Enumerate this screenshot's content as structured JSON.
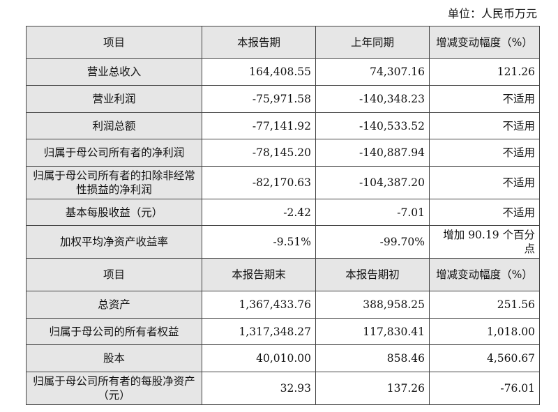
{
  "unit_label": "单位：人民币万元",
  "header1": [
    "项目",
    "本报告期",
    "上年同期",
    "增减变动幅度（%）"
  ],
  "rows1": [
    {
      "item": "营业总收入",
      "current": "164,408.55",
      "prior": "74,307.16",
      "change": "121.26"
    },
    {
      "item": "营业利润",
      "current": "-75,971.58",
      "prior": "-140,348.23",
      "change": "不适用"
    },
    {
      "item": "利润总额",
      "current": "-77,141.92",
      "prior": "-140,533.52",
      "change": "不适用"
    },
    {
      "item": "归属于母公司所有者的净利润",
      "current": "-78,145.20",
      "prior": "-140,887.94",
      "change": "不适用"
    },
    {
      "item": "归属于母公司所有者的扣除非经常性损益的净利润",
      "current": "-82,170.63",
      "prior": "-104,387.20",
      "change": "不适用"
    },
    {
      "item": "基本每股收益（元）",
      "current": "-2.42",
      "prior": "-7.01",
      "change": "不适用"
    },
    {
      "item": "加权平均净资产收益率",
      "current": "-9.51%",
      "prior": "-99.70%",
      "change": "增加 90.19 个百分点"
    }
  ],
  "header2": [
    "项目",
    "本报告期末",
    "本报告期初",
    "增减变动幅度（%）"
  ],
  "rows2": [
    {
      "item": "总资产",
      "current": "1,367,433.76",
      "prior": "388,958.25",
      "change": "251.56"
    },
    {
      "item": "归属于母公司的所有者权益",
      "current": "1,317,348.27",
      "prior": "117,830.41",
      "change": "1,018.00"
    },
    {
      "item": "股本",
      "current": "40,010.00",
      "prior": "858.46",
      "change": "4,560.67"
    },
    {
      "item": "归属于母公司所有者的每股净资产（元）",
      "current": "32.93",
      "prior": "137.26",
      "change": "-76.01"
    }
  ]
}
